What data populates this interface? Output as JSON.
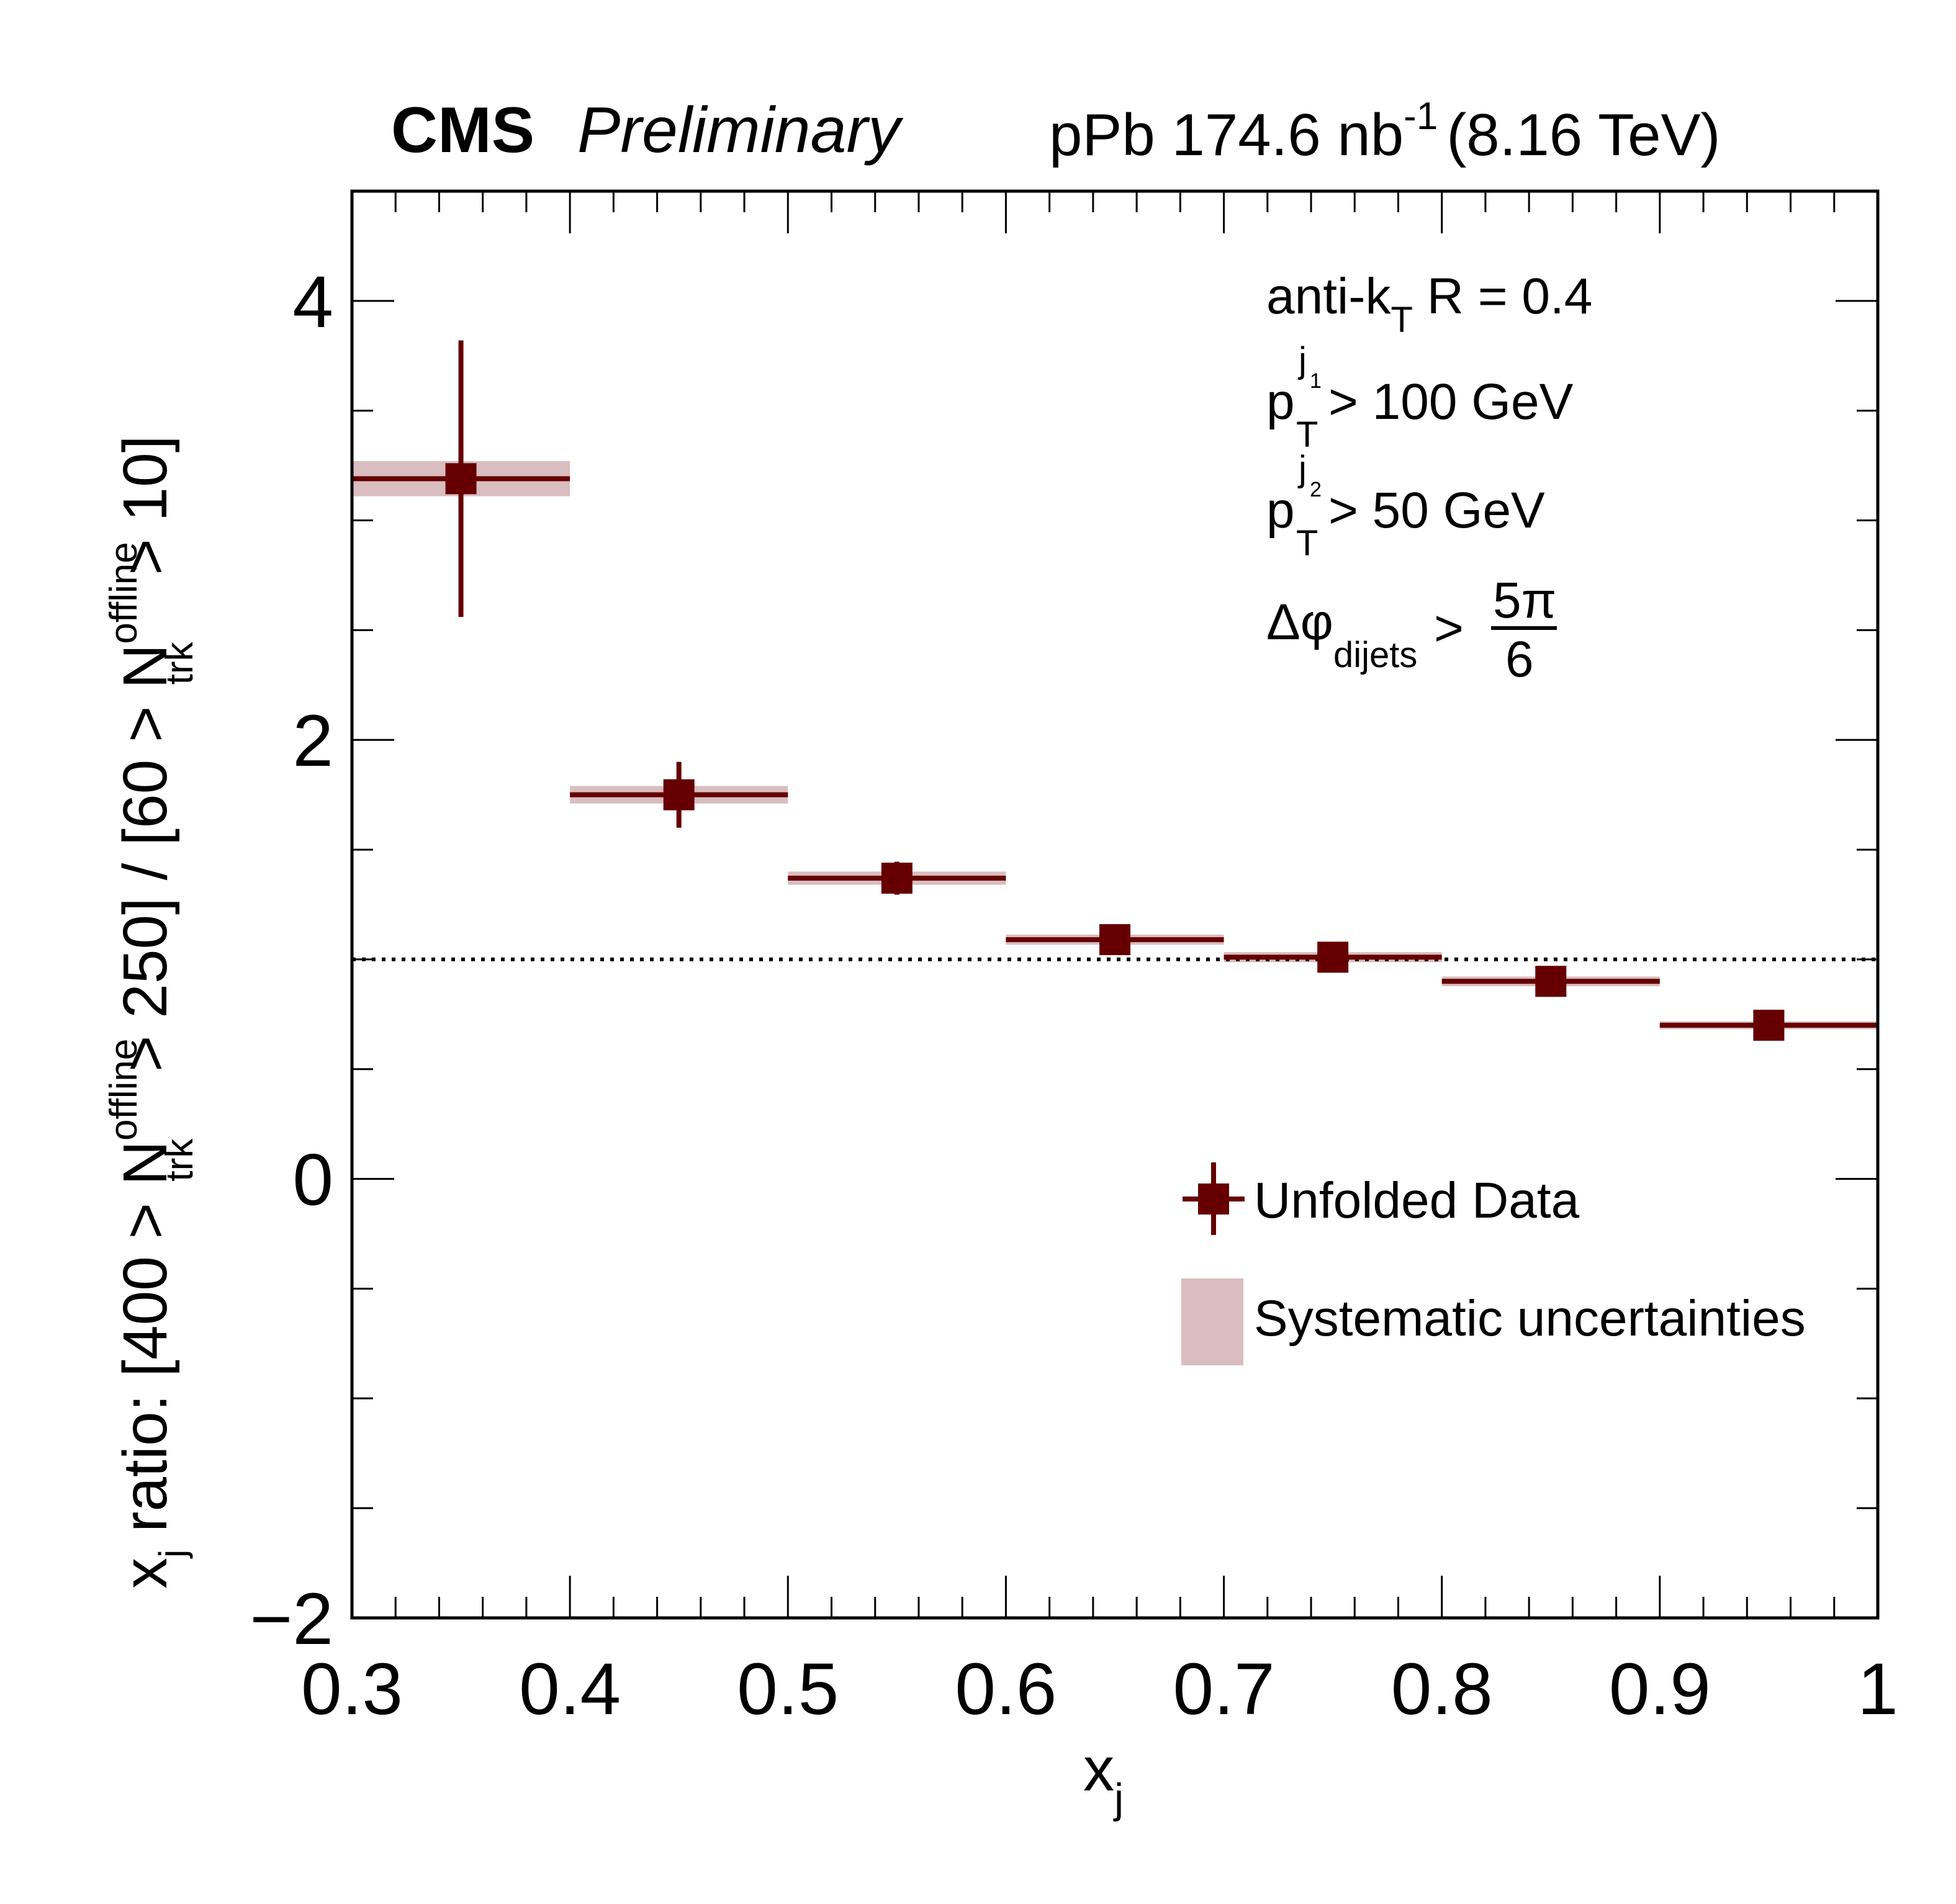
{
  "header": {
    "experiment": "CMS",
    "status": "Preliminary",
    "lumi_text": "pPb 174.6 nb",
    "lumi_exp": "-1",
    "energy_text": "(8.16 TeV)"
  },
  "annotations": {
    "algo_main": "anti-k",
    "algo_sub": "T",
    "algo_rest": " R = 0.4",
    "pt1_p": "p",
    "pt1_sub": "T",
    "pt1_sup": "j",
    "pt1_sup_sub": "1",
    "pt1_rest": " > 100 GeV",
    "pt2_p": "p",
    "pt2_sub": "T",
    "pt2_sup": "j",
    "pt2_sup_sub": "2",
    "pt2_rest": " > 50 GeV",
    "dphi_main": "Δφ",
    "dphi_sub": "dijets",
    "dphi_gt": ">",
    "dphi_num": "5π",
    "dphi_den": "6"
  },
  "legend": {
    "data_label": "Unfolded Data",
    "sys_label": "Systematic uncertainties"
  },
  "colors": {
    "marker": "#660000",
    "systematic": "#d9bdbf",
    "axis": "#000000"
  },
  "chart_data": {
    "type": "scatter",
    "title": "CMS Preliminary — pPb 174.6 nb^-1 (8.16 TeV)",
    "xlabel": "x_j",
    "ylabel": "x_j ratio: [400 > N_trk^offline > 250] / [60 > N_trk^offline > 10]",
    "ylabel_parts": {
      "a": "x",
      "a_sub": "j",
      "b": " ratio: [400 > N",
      "b_sup": "offline",
      "b_sub": "trk",
      "c": " > 250] / [60 > N",
      "c_sup": "offline",
      "c_sub": "trk",
      "d": " > 10]"
    },
    "xlabel_parts": {
      "main": "x",
      "sub": "j"
    },
    "xlim": [
      0.3,
      1.0
    ],
    "ylim": [
      -2,
      4.5
    ],
    "x_ticks": [
      0.3,
      0.4,
      0.5,
      0.6,
      0.7,
      0.8,
      0.9,
      1.0
    ],
    "x_tick_labels": [
      "0.3",
      "0.4",
      "0.5",
      "0.6",
      "0.7",
      "0.8",
      "0.9",
      "1"
    ],
    "y_ticks": [
      -2,
      0,
      2,
      4
    ],
    "y_tick_labels": [
      "−2",
      "0",
      "2",
      "4"
    ],
    "reference_line": 1.0,
    "grid": false,
    "legend_position": "bottom-right",
    "series": [
      {
        "name": "Unfolded Data",
        "bin_low": [
          0.3,
          0.4,
          0.5,
          0.6,
          0.7,
          0.8,
          0.9
        ],
        "bin_high": [
          0.4,
          0.5,
          0.6,
          0.7,
          0.8,
          0.9,
          1.0
        ],
        "x": [
          0.35,
          0.45,
          0.55,
          0.65,
          0.75,
          0.85,
          0.95
        ],
        "y": [
          3.19,
          1.75,
          1.37,
          1.09,
          1.01,
          0.9,
          0.7
        ],
        "stat_err": [
          0.63,
          0.15,
          0.075,
          0.07,
          0.07,
          0.07,
          0.07
        ],
        "sys_err": [
          0.08,
          0.04,
          0.03,
          0.023,
          0.023,
          0.022,
          0.018
        ]
      }
    ]
  }
}
